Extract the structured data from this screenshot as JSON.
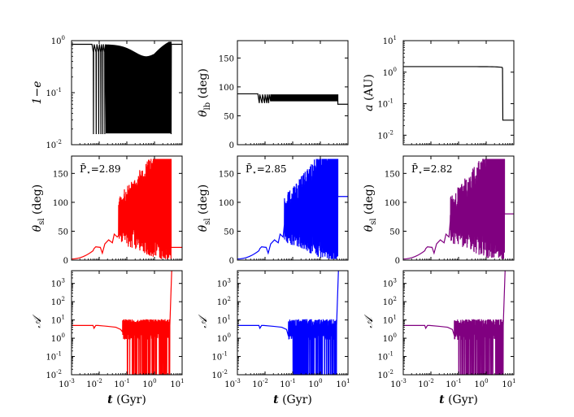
{
  "chart_data": [
    {
      "id": "p11",
      "type": "line",
      "yscale": "log",
      "ylabel": "1−e",
      "ylim": [
        0.01,
        1
      ],
      "xlim": [
        0.001,
        10
      ],
      "yticks": [
        {
          "t": "10",
          "s": "-2",
          "v": 0.01
        },
        {
          "t": "10",
          "s": "-1",
          "v": 0.1
        },
        {
          "t": "10",
          "s": "0",
          "v": 1
        }
      ],
      "series": [
        {
          "name": "1-e",
          "color": "#000000"
        }
      ]
    },
    {
      "id": "p12",
      "type": "line",
      "yscale": "linear",
      "ylabel": "θ",
      "ylabel_sub": "lb",
      "ylabel_unit": " (deg)",
      "ylim": [
        0,
        180
      ],
      "xlim": [
        0.001,
        10
      ],
      "yticks": [
        {
          "t": "0",
          "v": 0
        },
        {
          "t": "50",
          "v": 50
        },
        {
          "t": "100",
          "v": 100
        },
        {
          "t": "150",
          "v": 150
        }
      ],
      "series": [
        {
          "name": "theta_lb",
          "color": "#000000"
        }
      ]
    },
    {
      "id": "p13",
      "type": "line",
      "yscale": "log",
      "ylabel": "a",
      "ylabel_unit": " (AU)",
      "ylim": [
        0.005,
        10
      ],
      "xlim": [
        0.001,
        10
      ],
      "yticks": [
        {
          "t": "10",
          "s": "-2",
          "v": 0.01
        },
        {
          "t": "10",
          "s": "-1",
          "v": 0.1
        },
        {
          "t": "10",
          "s": "0",
          "v": 1
        },
        {
          "t": "10",
          "s": "1",
          "v": 10
        }
      ],
      "series": [
        {
          "name": "a",
          "color": "#000000"
        }
      ]
    },
    {
      "id": "p21",
      "type": "line",
      "yscale": "linear",
      "ylabel": "θ",
      "ylabel_sub": "sl",
      "ylabel_unit": " (deg)",
      "ylim": [
        0,
        180
      ],
      "xlim": [
        0.001,
        10
      ],
      "yticks": [
        {
          "t": "0",
          "v": 0
        },
        {
          "t": "50",
          "v": 50
        },
        {
          "t": "100",
          "v": 100
        },
        {
          "t": "150",
          "v": 150
        }
      ],
      "annotation": {
        "label": "P̄",
        "sub": "⋆",
        "value": "=2.89"
      },
      "final_value": 22,
      "series": [
        {
          "name": "theta_sl",
          "color": "#ff0000"
        }
      ]
    },
    {
      "id": "p22",
      "type": "line",
      "yscale": "linear",
      "ylabel": "θ",
      "ylabel_sub": "sl",
      "ylabel_unit": " (deg)",
      "ylim": [
        0,
        180
      ],
      "xlim": [
        0.001,
        10
      ],
      "yticks": [
        {
          "t": "0",
          "v": 0
        },
        {
          "t": "50",
          "v": 50
        },
        {
          "t": "100",
          "v": 100
        },
        {
          "t": "150",
          "v": 150
        }
      ],
      "annotation": {
        "label": "P̄",
        "sub": "⋆",
        "value": "=2.85"
      },
      "final_value": 110,
      "series": [
        {
          "name": "theta_sl",
          "color": "#0000ff"
        }
      ]
    },
    {
      "id": "p23",
      "type": "line",
      "yscale": "linear",
      "ylabel": "θ",
      "ylabel_sub": "sl",
      "ylabel_unit": " (deg)",
      "ylim": [
        0,
        180
      ],
      "xlim": [
        0.001,
        10
      ],
      "yticks": [
        {
          "t": "0",
          "v": 0
        },
        {
          "t": "50",
          "v": 50
        },
        {
          "t": "100",
          "v": 100
        },
        {
          "t": "150",
          "v": 150
        }
      ],
      "annotation": {
        "label": "P̄",
        "sub": "⋆",
        "value": "=2.82"
      },
      "final_value": 80,
      "series": [
        {
          "name": "theta_sl",
          "color": "#800080"
        }
      ]
    },
    {
      "id": "p31",
      "type": "line",
      "yscale": "log",
      "ylabel": "𝒜",
      "ylim": [
        0.01,
        5000
      ],
      "xlim": [
        0.001,
        10
      ],
      "yticks": [
        {
          "t": "10",
          "s": "-2",
          "v": 0.01
        },
        {
          "t": "10",
          "s": "-1",
          "v": 0.1
        },
        {
          "t": "10",
          "s": "0",
          "v": 1
        },
        {
          "t": "10",
          "s": "1",
          "v": 10
        },
        {
          "t": "10",
          "s": "2",
          "v": 100
        },
        {
          "t": "10",
          "s": "3",
          "v": 1000
        }
      ],
      "xticks": [
        {
          "t": "10",
          "s": "-3",
          "v": 0.001
        },
        {
          "t": "10",
          "s": "-2",
          "v": 0.01
        },
        {
          "t": "10",
          "s": "-1",
          "v": 0.1
        },
        {
          "t": "10",
          "s": "0",
          "v": 1
        },
        {
          "t": "10",
          "s": "1",
          "v": 10
        }
      ],
      "xlabel": "t",
      "xlabel_unit": " (Gyr)",
      "series": [
        {
          "name": "A",
          "color": "#ff0000"
        }
      ]
    },
    {
      "id": "p32",
      "type": "line",
      "yscale": "log",
      "ylabel": "𝒜",
      "ylim": [
        0.01,
        5000
      ],
      "xlim": [
        0.001,
        10
      ],
      "yticks": [
        {
          "t": "10",
          "s": "-2",
          "v": 0.01
        },
        {
          "t": "10",
          "s": "-1",
          "v": 0.1
        },
        {
          "t": "10",
          "s": "0",
          "v": 1
        },
        {
          "t": "10",
          "s": "1",
          "v": 10
        },
        {
          "t": "10",
          "s": "2",
          "v": 100
        },
        {
          "t": "10",
          "s": "3",
          "v": 1000
        }
      ],
      "xticks": [
        {
          "t": "10",
          "s": "-3",
          "v": 0.001
        },
        {
          "t": "10",
          "s": "-2",
          "v": 0.01
        },
        {
          "t": "10",
          "s": "-1",
          "v": 0.1
        },
        {
          "t": "10",
          "s": "0",
          "v": 1
        },
        {
          "t": "10",
          "s": "1",
          "v": 10
        }
      ],
      "xlabel": "t",
      "xlabel_unit": " (Gyr)",
      "series": [
        {
          "name": "A",
          "color": "#0000ff"
        }
      ]
    },
    {
      "id": "p33",
      "type": "line",
      "yscale": "log",
      "ylabel": "𝒜",
      "ylim": [
        0.01,
        5000
      ],
      "xlim": [
        0.001,
        10
      ],
      "yticks": [
        {
          "t": "10",
          "s": "-2",
          "v": 0.01
        },
        {
          "t": "10",
          "s": "-1",
          "v": 0.1
        },
        {
          "t": "10",
          "s": "0",
          "v": 1
        },
        {
          "t": "10",
          "s": "1",
          "v": 10
        },
        {
          "t": "10",
          "s": "2",
          "v": 100
        },
        {
          "t": "10",
          "s": "3",
          "v": 1000
        }
      ],
      "xticks": [
        {
          "t": "10",
          "s": "-3",
          "v": 0.001
        },
        {
          "t": "10",
          "s": "-2",
          "v": 0.01
        },
        {
          "t": "10",
          "s": "-1",
          "v": 0.1
        },
        {
          "t": "10",
          "s": "0",
          "v": 1
        },
        {
          "t": "10",
          "s": "1",
          "v": 10
        }
      ],
      "xlabel": "t",
      "xlabel_unit": " (Gyr)",
      "series": [
        {
          "name": "A",
          "color": "#800080"
        }
      ]
    }
  ]
}
